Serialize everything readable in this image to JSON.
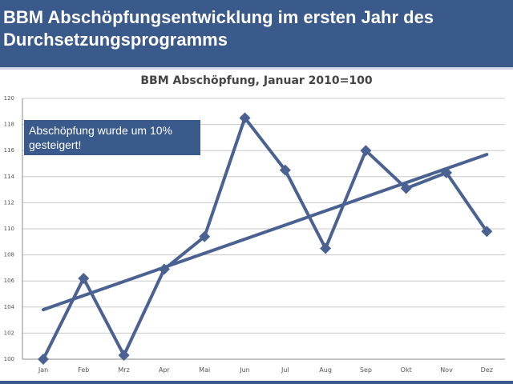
{
  "slide": {
    "title": "BBM Abschöpfungsentwicklung im ersten Jahr des Durchsetzungsprogramms"
  },
  "annotation": {
    "text": "Abschöpfung wurde um 10% gesteigert!"
  },
  "colors": {
    "header": "#3a5a8c",
    "series": "#4a6291",
    "grid": "#c8c8c8"
  },
  "chart_data": {
    "type": "line",
    "title": "BBM Abschöpfung, Januar 2010=100",
    "categories": [
      "Jan",
      "Feb",
      "Mrz",
      "Apr",
      "Mai",
      "Jun",
      "Jul",
      "Aug",
      "Sep",
      "Okt",
      "Nov",
      "Dez"
    ],
    "series": [
      {
        "values": [
          100.0,
          106.2,
          100.3,
          106.9,
          109.4,
          118.5,
          114.5,
          108.5,
          116.0,
          113.1,
          114.3,
          109.8
        ]
      }
    ],
    "trendline": {
      "start": 103.8,
      "end": 115.7
    },
    "ylim": [
      100,
      120
    ],
    "yticks": [
      100,
      102,
      104,
      106,
      108,
      110,
      112,
      114,
      116,
      118,
      120
    ],
    "grid": true,
    "legend": "none"
  }
}
